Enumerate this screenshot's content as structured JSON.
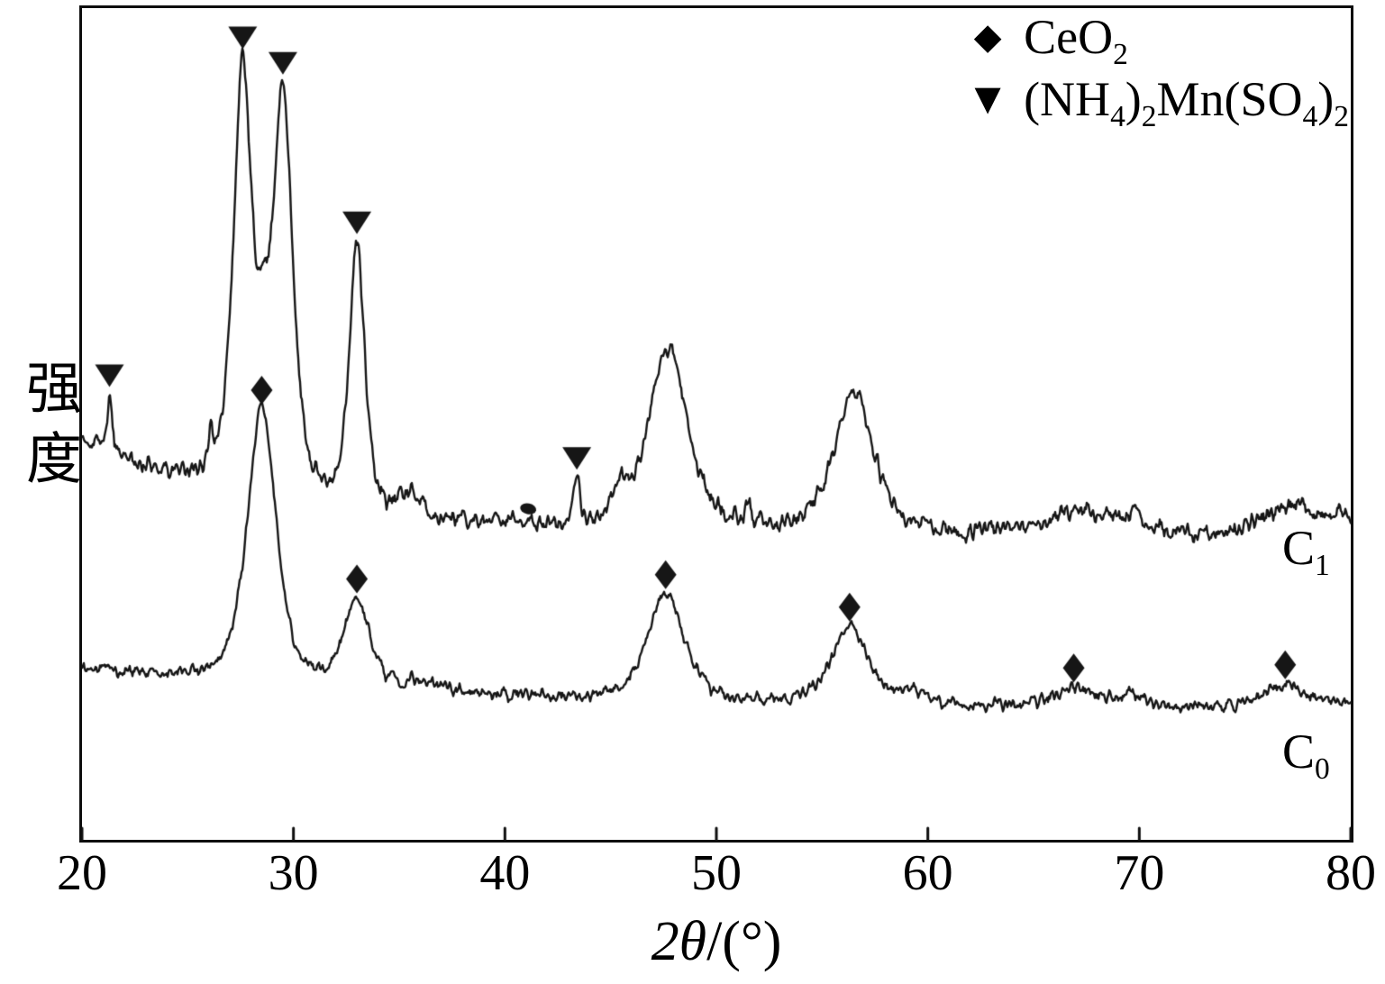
{
  "chart_data": {
    "type": "line",
    "title": "",
    "xlabel": "2θ/(°)",
    "xlabel_italic": "2θ",
    "xlabel_rest": "/(°)",
    "ylabel": "强度",
    "xlim": [
      20,
      80
    ],
    "ylim": [
      0,
      100
    ],
    "x_ticks": [
      "20",
      "30",
      "40",
      "50",
      "60",
      "70",
      "80"
    ],
    "grid": false,
    "frame_color": "#0d0d0d",
    "line_color": "#161616",
    "marker_offset": 2.2,
    "legend_position": "top-right-inside",
    "legend": [
      {
        "symbol": "diamond",
        "glyph": "◆",
        "text": "CeO2",
        "parts": [
          {
            "t": "CeO"
          },
          {
            "sub": "2"
          }
        ]
      },
      {
        "symbol": "triangle-down",
        "glyph": "▼",
        "text": "(NH4)2Mn(SO4)2",
        "parts": [
          {
            "t": "(NH"
          },
          {
            "sub": "4"
          },
          {
            "t": ")"
          },
          {
            "sub": "2"
          },
          {
            "t": "Mn(SO"
          },
          {
            "sub": "4"
          },
          {
            "t": ")"
          },
          {
            "sub": "2"
          }
        ]
      }
    ],
    "series": [
      {
        "name": "C1",
        "text": "C1",
        "label_parts": [
          {
            "t": "C"
          },
          {
            "sub": "1"
          }
        ],
        "baseline": {
          "base": 36.5,
          "amp": 11.5,
          "decay": 8.5
        },
        "noise": 2.0,
        "peaks": [
          {
            "x": 21.3,
            "h": 7.0,
            "w": 0.13,
            "marker": "triangle-down"
          },
          {
            "x": 26.1,
            "h": 4.0,
            "w": 0.14
          },
          {
            "x": 27.6,
            "h": 50.0,
            "w": 0.5,
            "marker": "triangle-down"
          },
          {
            "x": 28.55,
            "h": 10.0,
            "w": 0.35
          },
          {
            "x": 29.5,
            "h": 48.0,
            "w": 0.55,
            "marker": "triangle-down"
          },
          {
            "x": 33.0,
            "h": 32.0,
            "w": 0.42,
            "marker": "triangle-down"
          },
          {
            "x": 35.6,
            "h": 3.0,
            "w": 0.5
          },
          {
            "x": 43.4,
            "h": 5.5,
            "w": 0.16,
            "marker": "triangle-down"
          },
          {
            "x": 45.4,
            "h": 3.5,
            "w": 0.4
          },
          {
            "x": 47.7,
            "h": 22.0,
            "w": 1.1
          },
          {
            "x": 51.5,
            "h": 2.5,
            "w": 0.15
          },
          {
            "x": 56.5,
            "h": 16.5,
            "w": 1.1
          },
          {
            "x": 67.0,
            "h": 2.8,
            "w": 1.2
          },
          {
            "x": 69.6,
            "h": 2.2,
            "w": 1.0
          },
          {
            "x": 77.2,
            "h": 3.5,
            "w": 1.4
          },
          {
            "x": 79.8,
            "h": 2.0,
            "w": 0.8
          }
        ]
      },
      {
        "name": "C0",
        "text": "C0",
        "label_parts": [
          {
            "t": "C"
          },
          {
            "sub": "0"
          }
        ],
        "baseline": {
          "base": 15.2,
          "amp": 5.3,
          "decay": 20
        },
        "noise": 1.4,
        "peaks": [
          {
            "x": 28.5,
            "h": 33.0,
            "w": 0.8,
            "marker": "diamond"
          },
          {
            "x": 33.0,
            "h": 10.5,
            "w": 0.7,
            "marker": "diamond"
          },
          {
            "x": 36.1,
            "h": 1.3,
            "w": 0.8
          },
          {
            "x": 47.6,
            "h": 13.0,
            "w": 1.0,
            "marker": "diamond"
          },
          {
            "x": 56.3,
            "h": 9.5,
            "w": 1.0,
            "marker": "diamond"
          },
          {
            "x": 59.3,
            "h": 1.5,
            "w": 0.9
          },
          {
            "x": 66.9,
            "h": 2.5,
            "w": 1.1,
            "marker": "diamond"
          },
          {
            "x": 69.5,
            "h": 1.5,
            "w": 1.0
          },
          {
            "x": 76.9,
            "h": 3.2,
            "w": 1.2,
            "marker": "diamond"
          },
          {
            "x": 79.3,
            "h": 1.0,
            "w": 0.8
          }
        ]
      }
    ],
    "ink_blot": {
      "x": 41.1,
      "v": 39.8
    }
  }
}
